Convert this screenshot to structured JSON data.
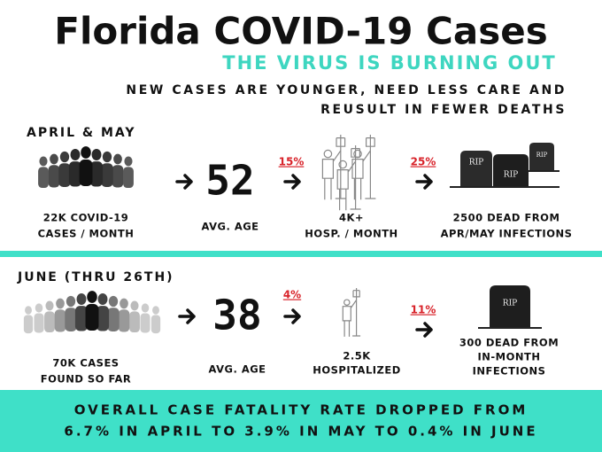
{
  "header": {
    "title": "Florida COVID-19 Cases",
    "subtitle": "THE VIRUS IS BURNING OUT",
    "tagline": [
      "NEW CASES ARE YOUNGER, NEED LESS CARE AND",
      "REUSULT IN FEWER DEATHS"
    ]
  },
  "sections": [
    {
      "label": "APRIL & MAY",
      "cases": [
        "22K COVID-19",
        "CASES / MONTH"
      ],
      "age": "52",
      "age_label": "AVG. AGE",
      "hosp_rate": "15%",
      "hosp": [
        "4K+",
        "HOSP. / MONTH"
      ],
      "death_rate": "25%",
      "deaths": [
        "2500 DEAD FROM",
        "APR/MAY INFECTIONS"
      ],
      "tombstones": [
        "RIP",
        "RIP",
        "RIP"
      ]
    },
    {
      "label": "JUNE (THRU 26TH)",
      "cases": [
        "70K CASES",
        "FOUND SO FAR"
      ],
      "age": "38",
      "age_label": "AVG. AGE",
      "hosp_rate": "4%",
      "hosp": [
        "2.5K",
        "HOSPITALIZED"
      ],
      "death_rate": "11%",
      "deaths": [
        "300 DEAD FROM",
        "IN-MONTH",
        "INFECTIONS"
      ],
      "tombstones": [
        "RIP"
      ]
    }
  ],
  "footer": [
    "OVERALL CASE FATALITY RATE DROPPED FROM",
    "6.7% IN APRIL TO 3.9% IN MAY TO 0.4% IN JUNE"
  ]
}
